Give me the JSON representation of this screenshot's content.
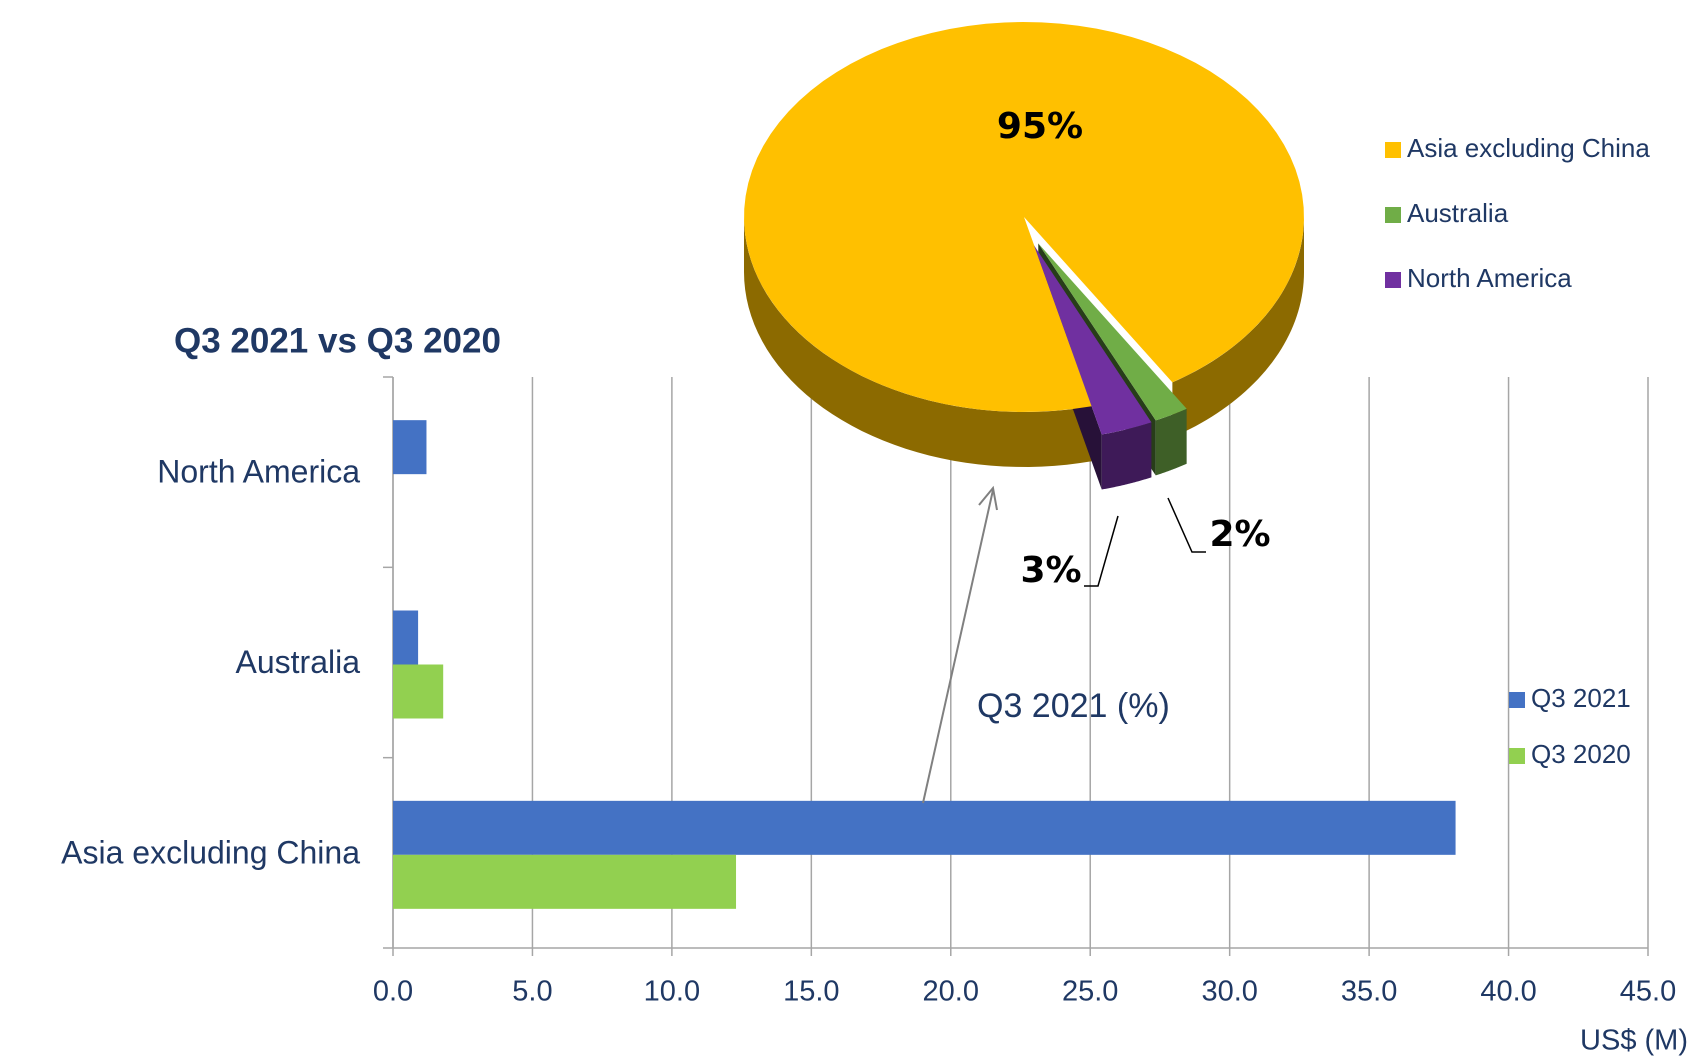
{
  "chart_data": [
    {
      "type": "bar",
      "orientation": "horizontal",
      "title": "Q3 2021 vs Q3 2020",
      "x_label": "US$ (M)",
      "categories": [
        "North America",
        "Australia",
        "Asia excluding China"
      ],
      "series": [
        {
          "name": "Q3 2021",
          "color": "#4472c4",
          "values": [
            1.2,
            0.9,
            38.1
          ]
        },
        {
          "name": "Q3 2020",
          "color": "#92d050",
          "values": [
            null,
            1.8,
            12.3
          ]
        }
      ],
      "xlim": [
        0,
        45
      ],
      "xticks": [
        {
          "value": 0,
          "label": "0.0"
        },
        {
          "value": 5,
          "label": "5.0"
        },
        {
          "value": 10,
          "label": "10.0"
        },
        {
          "value": 15,
          "label": "15.0"
        },
        {
          "value": 20,
          "label": "20.0"
        },
        {
          "value": 25,
          "label": "25.0"
        },
        {
          "value": 30,
          "label": "30.0"
        },
        {
          "value": 35,
          "label": "35.0"
        },
        {
          "value": 40,
          "label": "40.0"
        },
        {
          "value": 45,
          "label": "45.0"
        }
      ],
      "grid": true,
      "legend": "right"
    },
    {
      "type": "pie",
      "title": "Q3 2021 (%)",
      "categories": [
        "Asia excluding China",
        "Australia",
        "North America"
      ],
      "values": [
        95,
        2,
        3
      ],
      "value_labels": [
        "95%",
        "2%",
        "3%"
      ],
      "colors": [
        "#ffc000",
        "#70ad47",
        "#7030a0"
      ],
      "legend": "top-right"
    }
  ]
}
